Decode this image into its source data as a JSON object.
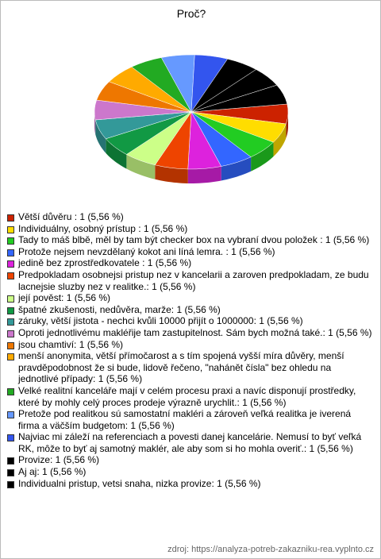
{
  "chart_data": {
    "type": "pie",
    "title": "Proč?",
    "categories": [
      "Větší důvěru : 1 (5,56 %)",
      "Individuálny, osobný prístup : 1 (5,56 %)",
      "Tady to máš blbě, měl by tam být checker box na vybraní dvou položek : 1 (5,56 %)",
      "Protože nejsem nevzdělaný kokot ani líná lemra. : 1 (5,56 %)",
      "jedině bez zprostředkovatele : 1 (5,56 %)",
      "Predpokladam osobnejsi pristup nez v kancelarii a zaroven predpokladam, ze budu lacnejsie sluzby nez v realitke.: 1 (5,56 %)",
      "její pověst: 1 (5,56 %)",
      "špatné zkušenosti, nedůvěra, marže: 1 (5,56 %)",
      "záruky, větší jistota - nechci kvůli 10000 přijít o 1000000: 1 (5,56 %)",
      "Oproti jednotlivému makléřije tam zastupitelnost. Sám bych možná také.: 1 (5,56 %)",
      "jsou chamtiví: 1 (5,56 %)",
      "menší anonymita, větší přímočarost a s tím spojená vyšší míra důvěry, menší pravděpodobnost že si bude, lidově řečeno, \"nahánět čísla\" bez ohledu na jednotlivé případy: 1 (5,56 %)",
      "Velké realitní kanceláře mají v celém procesu praxi a navíc disponují prostředky, které by mohly celý proces prodeje výrazně urychlit.: 1 (5,56 %)",
      "Pretože pod realitkou sú samostatní makléri a zároveň veľká realitka je iverená firma a väčším budgetom: 1 (5,56 %)",
      "Najviac mi záleží na referenciach a povesti danej kancelárie. Nemusí to byť veľká RK, môže to byť aj samotný maklér, ale aby som si ho mohla overiť.: 1 (5,56 %)",
      "Provize: 1 (5,56 %)",
      "Aj aj: 1 (5,56 %)",
      "Individualni pristup, vetsi snaha, nizka provize: 1 (5,56 %)"
    ],
    "values": [
      1,
      1,
      1,
      1,
      1,
      1,
      1,
      1,
      1,
      1,
      1,
      1,
      1,
      1,
      1,
      1,
      1,
      1
    ],
    "colors": [
      "#cc2200",
      "#ffdd00",
      "#22cc22",
      "#3366ff",
      "#dd22dd",
      "#ee4400",
      "#ccff88",
      "#119944",
      "#339999",
      "#cc77cc",
      "#ee7700",
      "#ffaa00",
      "#22aa22",
      "#6699ff",
      "#3355ee",
      "#000000",
      "#000000",
      "#000000"
    ],
    "source": "zdroj: https://analyza-potreb-zakazniku-rea.vyplnto.cz"
  }
}
